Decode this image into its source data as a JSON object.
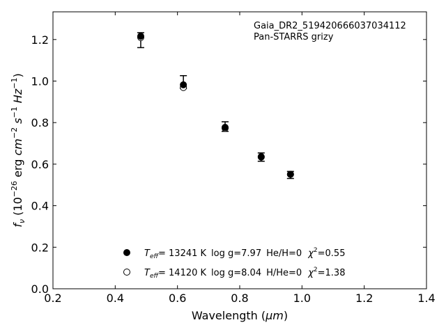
{
  "chart_data": {
    "type": "scatter",
    "xlabel_main": "Wavelength (",
    "xlabel_unit": "μm",
    "xlabel_close": ")",
    "ylabel_f": "f",
    "ylabel_nu": "ν",
    "ylabel_open": " (10",
    "ylabel_exp1": "−26",
    "ylabel_erg": " erg ",
    "ylabel_cm": "cm",
    "ylabel_exp2": "−2",
    "ylabel_s": " s",
    "ylabel_exp3": "−1",
    "ylabel_hz": " Hz",
    "ylabel_exp4": "−1",
    "ylabel_close": ")",
    "xlim": [
      0.2,
      1.4
    ],
    "ylim": [
      0.0,
      1.3333
    ],
    "xticks": [
      0.2,
      0.4,
      0.6,
      0.8,
      1.0,
      1.2,
      1.4
    ],
    "xtick_labels": [
      "0.2",
      "0.4",
      "0.6",
      "0.8",
      "1.0",
      "1.2",
      "1.4"
    ],
    "yticks": [
      0.0,
      0.2,
      0.4,
      0.6,
      0.8,
      1.0,
      1.2
    ],
    "ytick_labels": [
      "0.0",
      "0.2",
      "0.4",
      "0.6",
      "0.8",
      "1.0",
      "1.2"
    ],
    "annotation_lines": [
      "Gaia_DR2_519420666037034112",
      "Pan-STARRS grizy"
    ],
    "observed": {
      "x": [
        0.482,
        0.619,
        0.753,
        0.869,
        0.963
      ],
      "y": [
        1.197,
        0.995,
        0.781,
        0.634,
        0.548
      ],
      "yerr": [
        0.036,
        0.031,
        0.023,
        0.02,
        0.017
      ]
    },
    "series": [
      {
        "marker": "filled",
        "x": [
          0.482,
          0.619,
          0.753,
          0.869,
          0.963
        ],
        "y": [
          1.216,
          0.982,
          0.777,
          0.636,
          0.551
        ],
        "legend": {
          "teff_T": "T",
          "teff_sub": "eff",
          "teff_value": "= 13241 K",
          "logg": "log g=7.97",
          "comp": "He/H=0",
          "chi": "χ",
          "chi_sup": "2",
          "chi_value": "=0.55"
        }
      },
      {
        "marker": "open",
        "x": [
          0.482,
          0.619,
          0.753,
          0.869,
          0.963
        ],
        "y": [
          1.21,
          0.969,
          0.773,
          0.634,
          0.551
        ],
        "legend": {
          "teff_T": "T",
          "teff_sub": "eff",
          "teff_value": "= 14120 K",
          "logg": "log g=8.04",
          "comp": "H/He=0",
          "chi": "χ",
          "chi_sup": "2",
          "chi_value": "=1.38"
        }
      }
    ]
  }
}
